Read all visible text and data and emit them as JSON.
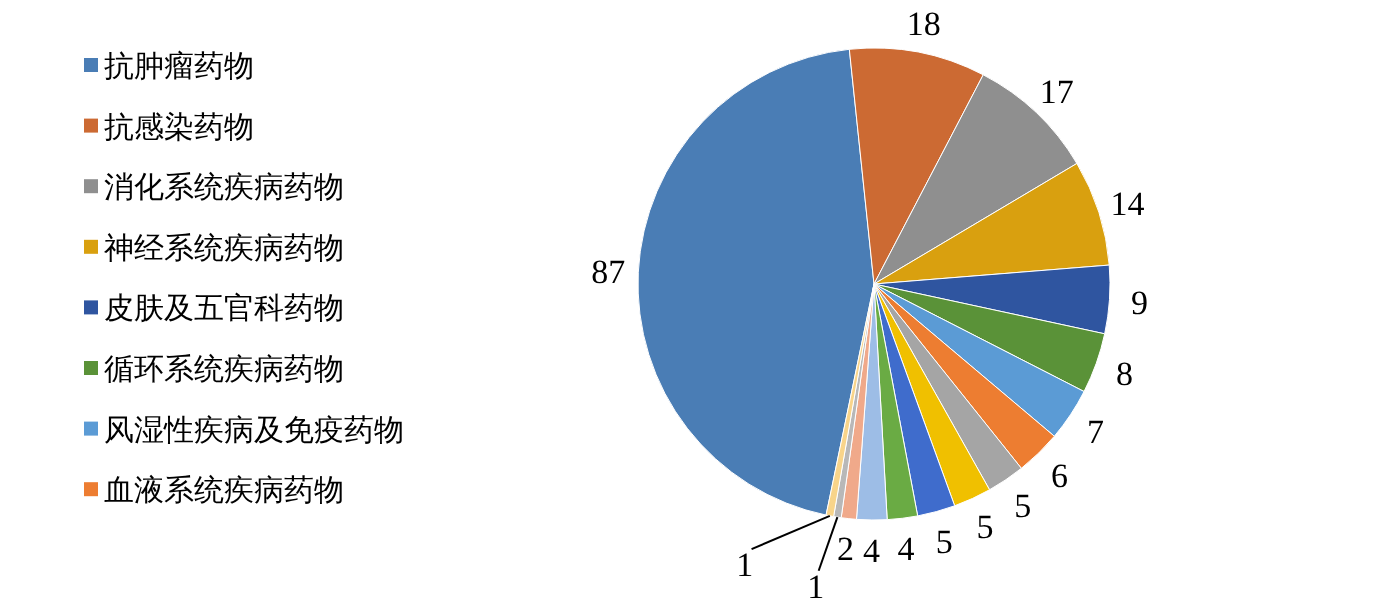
{
  "chart_data": {
    "type": "pie",
    "categories": [
      "抗肿瘤药物",
      "抗感染药物",
      "消化系统疾病药物",
      "神经系统疾病药物",
      "皮肤及五官科药物",
      "循环系统疾病药物",
      "风湿性疾病及免疫药物",
      "血液系统疾病药物",
      null,
      null,
      null,
      null,
      null,
      null,
      null,
      null
    ],
    "values": [
      87,
      18,
      17,
      14,
      9,
      8,
      7,
      6,
      5,
      5,
      5,
      4,
      4,
      2,
      1,
      1
    ],
    "colors": [
      "#4a7db5",
      "#cc6a33",
      "#8f8f8f",
      "#d9a00f",
      "#2f55a0",
      "#5a9238",
      "#5b9bd5",
      "#ed7d31",
      "#a5a5a5",
      "#f0c000",
      "#3f6ccc",
      "#6aab44",
      "#9dbde6",
      "#f0a98a",
      "#b8b8b8",
      "#f8d48a"
    ],
    "data_labels": true,
    "legend": "left"
  }
}
